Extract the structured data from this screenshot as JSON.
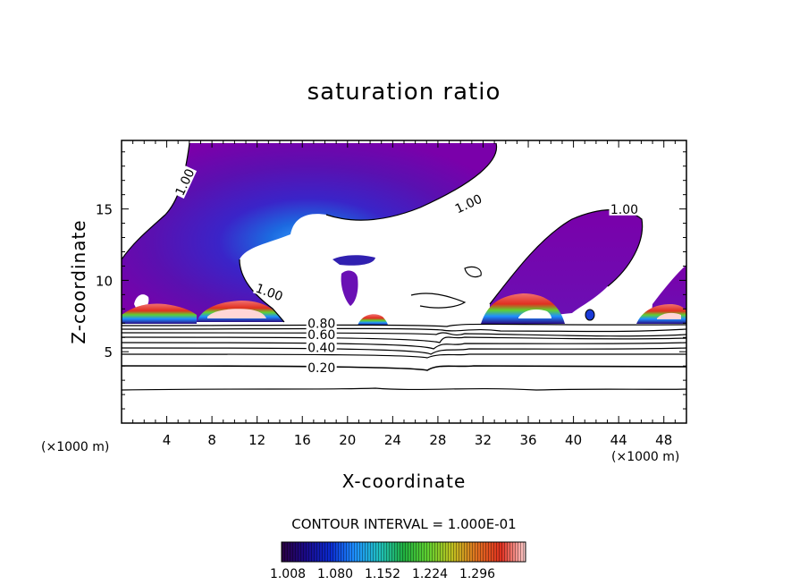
{
  "chart_data": {
    "type": "contour",
    "title": "saturation ratio",
    "xlabel": "X-coordinate",
    "ylabel": "Z-coordinate",
    "x_unit": "(×1000 m)",
    "xlim": [
      0,
      50
    ],
    "ylim": [
      0,
      19.8
    ],
    "x_ticks": [
      4,
      8,
      12,
      16,
      20,
      24,
      28,
      32,
      36,
      40,
      44,
      48
    ],
    "y_ticks": [
      5,
      10,
      15
    ],
    "contour_interval": "CONTOUR INTERVAL = 1.000E-01",
    "contour_labels": [
      {
        "text": "1.00",
        "x": 5.8,
        "z": 16.8,
        "angle": -65
      },
      {
        "text": "1.00",
        "x": 30.8,
        "z": 15.2,
        "angle": -25
      },
      {
        "text": "1.00",
        "x": 44.5,
        "z": 14.8,
        "angle": 0
      },
      {
        "text": "1.00",
        "x": 13.0,
        "z": 9.0,
        "angle": 20
      },
      {
        "text": "0.80",
        "x": 17.7,
        "z": 6.8,
        "angle": 0
      },
      {
        "text": "0.60",
        "x": 17.7,
        "z": 6.0,
        "angle": 0
      },
      {
        "text": "0.40",
        "x": 17.7,
        "z": 5.1,
        "angle": 0
      },
      {
        "text": "0.20",
        "x": 17.7,
        "z": 3.7,
        "angle": 0
      }
    ],
    "contour_lines": [
      0.2,
      0.3,
      0.4,
      0.5,
      0.6,
      0.7,
      0.8,
      0.9,
      1.0
    ],
    "colorbar": {
      "tick_labels": [
        "1.008",
        "1.080",
        "1.152",
        "1.224",
        "1.296"
      ],
      "colors": [
        "#2a0040",
        "#1a0a8a",
        "#0a2ad0",
        "#1e90ff",
        "#20c0c0",
        "#20b040",
        "#60d030",
        "#c0c020",
        "#e07020",
        "#e03020",
        "#f08080",
        "#ffd0d0"
      ]
    }
  }
}
